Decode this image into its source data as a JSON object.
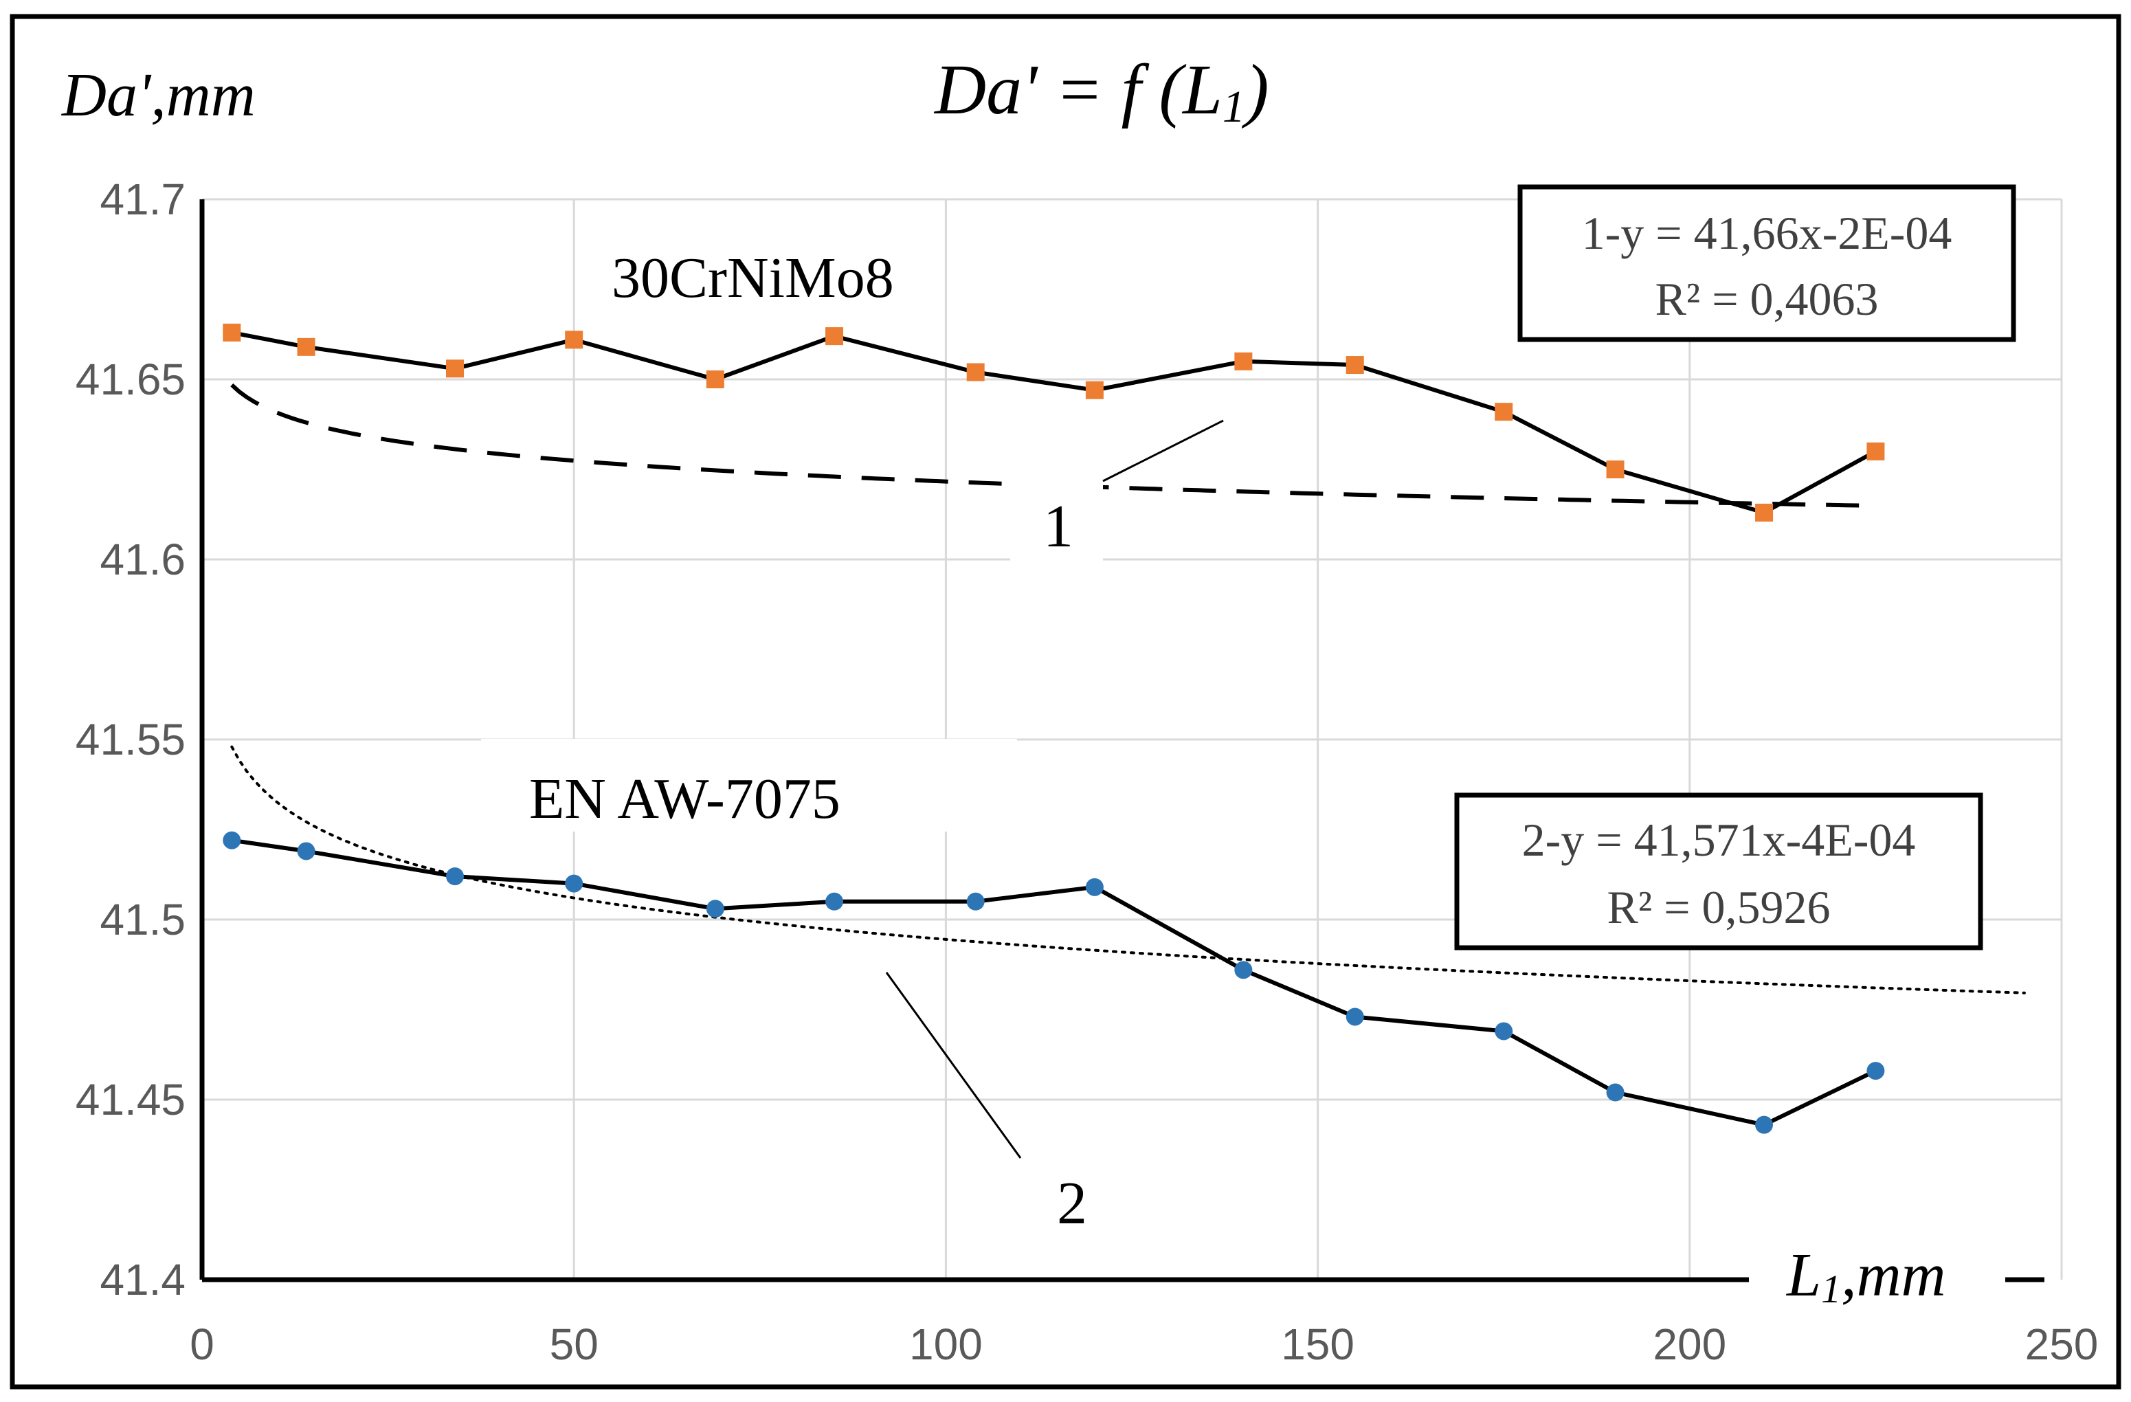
{
  "chart_data": {
    "type": "line",
    "title": "Da' = f (L1)",
    "title_main": "Da' = f (L",
    "title_sub": "1",
    "title_close": ")",
    "ylabel": "Da',mm",
    "xlabel_main": "L",
    "xlabel_sub": "1",
    "xlabel_unit": ",mm",
    "xlim": [
      0,
      250
    ],
    "ylim": [
      41.4,
      41.7
    ],
    "x_ticks": [
      "0",
      "50",
      "100",
      "150",
      "200",
      "250"
    ],
    "y_ticks": [
      "41.4",
      "41.45",
      "41.5",
      "41.55",
      "41.6",
      "41.65",
      "41.7"
    ],
    "grid": true,
    "series": [
      {
        "name": "30CrNiMo8",
        "color": "#ED7D31",
        "marker": "square",
        "x": [
          4,
          14,
          34,
          50,
          69,
          85,
          104,
          120,
          140,
          155,
          175,
          190,
          210,
          225
        ],
        "y": [
          41.663,
          41.659,
          41.653,
          41.661,
          41.65,
          41.662,
          41.652,
          41.647,
          41.655,
          41.654,
          41.641,
          41.625,
          41.613,
          41.63
        ]
      },
      {
        "name": "EN AW-7075",
        "color": "#2E75B6",
        "marker": "circle",
        "x": [
          4,
          14,
          34,
          50,
          69,
          85,
          104,
          120,
          140,
          155,
          175,
          190,
          210,
          225
        ],
        "y": [
          41.522,
          41.519,
          41.512,
          41.51,
          41.503,
          41.505,
          41.505,
          41.509,
          41.486,
          41.473,
          41.469,
          41.452,
          41.443,
          41.458
        ]
      }
    ],
    "trendlines": [
      {
        "label": "1",
        "equation": "1-y = 41,66x-2E-04",
        "r2": "R² = 0,4063",
        "a": 41.66,
        "b": -0.0002,
        "x_range": [
          4,
          225
        ],
        "style": "dashed"
      },
      {
        "label": "2",
        "equation": "2-y = 41,571x-4E-04",
        "r2": "R² = 0,5926",
        "a": 41.571,
        "b": -0.0004,
        "x_range": [
          4,
          245
        ],
        "style": "dotted"
      }
    ]
  }
}
